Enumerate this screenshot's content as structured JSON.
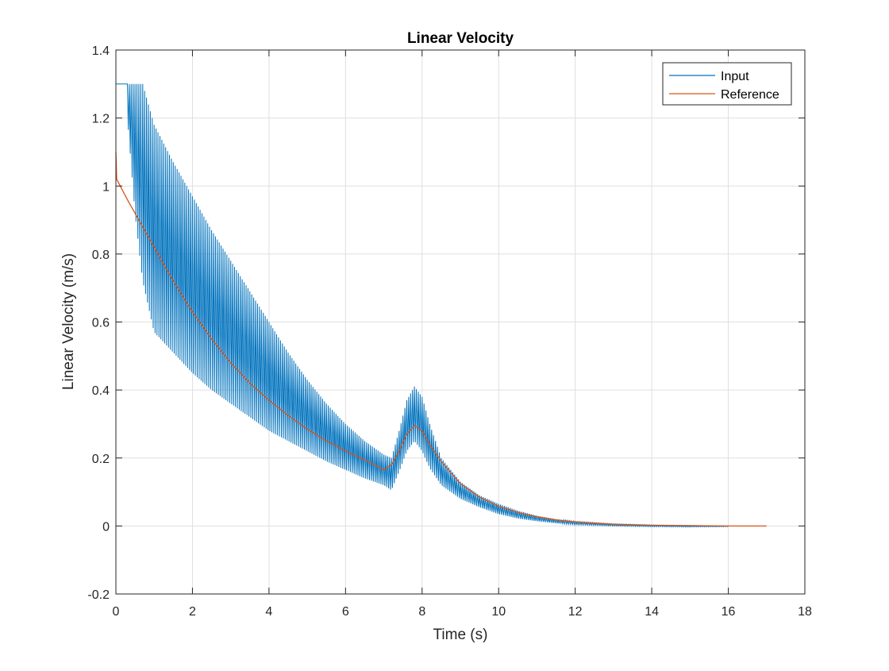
{
  "chart_data": {
    "type": "line",
    "title": "Linear Velocity",
    "xlabel": "Time (s)",
    "ylabel": "Linear Velocity (m/s)",
    "xlim": [
      0,
      18
    ],
    "ylim": [
      -0.2,
      1.4
    ],
    "xticks": [
      0,
      2,
      4,
      6,
      8,
      10,
      12,
      14,
      16,
      18
    ],
    "xtick_labels": [
      "0",
      "2",
      "4",
      "6",
      "8",
      "10",
      "12",
      "14",
      "16",
      "18"
    ],
    "yticks": [
      -0.2,
      0,
      0.2,
      0.4,
      0.6,
      0.8,
      1,
      1.2,
      1.4
    ],
    "ytick_labels": [
      "-0.2",
      "0",
      "0.2",
      "0.4",
      "0.6",
      "0.8",
      "1",
      "1.2",
      "1.4"
    ],
    "grid": true,
    "legend_position": "top-right",
    "series": [
      {
        "name": "Input",
        "color": "#0072BD",
        "style": "oscillating",
        "saturation_value": 1.3,
        "saturation_until": 0.3,
        "oscillation_period": 0.05,
        "upper_envelope": {
          "x": [
            0.3,
            0.7,
            1.0,
            1.5,
            2.0,
            2.5,
            3.0,
            3.5,
            4.0,
            4.5,
            5.0,
            5.5,
            6.0,
            6.5,
            7.0,
            7.2,
            7.4,
            7.6,
            7.8,
            8.0,
            8.2,
            8.5,
            9.0,
            9.5,
            10.0,
            10.5,
            11.0,
            11.5,
            12.0,
            13.0,
            14.0,
            15.0,
            16.0
          ],
          "y": [
            1.3,
            1.3,
            1.18,
            1.07,
            0.97,
            0.87,
            0.78,
            0.69,
            0.6,
            0.51,
            0.43,
            0.36,
            0.3,
            0.25,
            0.21,
            0.2,
            0.28,
            0.37,
            0.41,
            0.38,
            0.3,
            0.2,
            0.13,
            0.09,
            0.065,
            0.045,
            0.03,
            0.02,
            0.013,
            0.006,
            0.003,
            0.001,
            0.0
          ]
        },
        "lower_envelope": {
          "x": [
            0.3,
            0.5,
            0.7,
            1.0,
            1.5,
            2.0,
            2.5,
            3.0,
            3.5,
            4.0,
            4.5,
            5.0,
            5.5,
            6.0,
            6.5,
            7.0,
            7.2,
            7.4,
            7.6,
            7.8,
            8.0,
            8.2,
            8.5,
            9.0,
            9.5,
            10.0,
            10.5,
            11.0,
            11.5,
            12.0,
            13.0,
            14.0,
            15.0,
            16.0
          ],
          "y": [
            1.2,
            0.92,
            0.72,
            0.57,
            0.51,
            0.45,
            0.4,
            0.36,
            0.32,
            0.28,
            0.25,
            0.22,
            0.19,
            0.165,
            0.14,
            0.12,
            0.105,
            0.16,
            0.22,
            0.25,
            0.22,
            0.17,
            0.12,
            0.08,
            0.055,
            0.035,
            0.022,
            0.014,
            0.008,
            0.004,
            0.0,
            -0.002,
            -0.003,
            -0.002
          ]
        }
      },
      {
        "name": "Reference",
        "color": "#D95319",
        "style": "line",
        "x": [
          0,
          0.02,
          0.3,
          0.6,
          1.0,
          1.5,
          2.0,
          2.5,
          3.0,
          3.5,
          4.0,
          4.5,
          5.0,
          5.5,
          6.0,
          6.5,
          7.0,
          7.2,
          7.4,
          7.6,
          7.8,
          8.0,
          8.2,
          8.5,
          9.0,
          9.5,
          10.0,
          10.5,
          11.0,
          11.5,
          12.0,
          13.0,
          14.0,
          15.0,
          16.0,
          17.0
        ],
        "y": [
          1.1,
          1.02,
          0.96,
          0.9,
          0.82,
          0.72,
          0.63,
          0.55,
          0.48,
          0.42,
          0.37,
          0.325,
          0.285,
          0.25,
          0.22,
          0.195,
          0.165,
          0.18,
          0.22,
          0.27,
          0.295,
          0.28,
          0.24,
          0.19,
          0.125,
          0.085,
          0.058,
          0.04,
          0.027,
          0.018,
          0.012,
          0.005,
          0.002,
          0.001,
          0.0,
          0.0
        ]
      }
    ]
  }
}
